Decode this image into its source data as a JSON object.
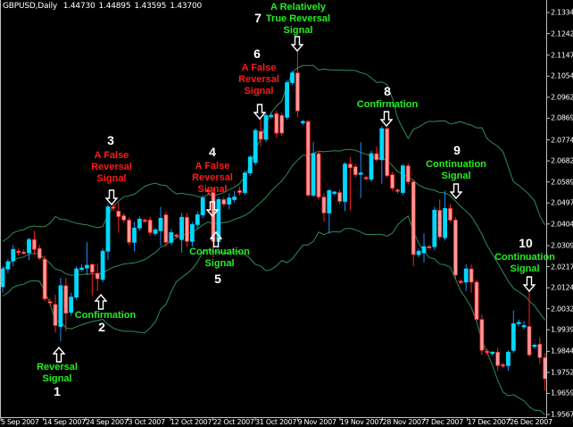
{
  "header": {
    "symbol": "GBPUSD,Daily",
    "open": "1.44730",
    "high": "1.44895",
    "low": "1.43595",
    "close": "1.43700"
  },
  "colors": {
    "background": "#000000",
    "bull_fill": "#00d8ff",
    "bull_wick": "#1e90ff",
    "bear_fill": "#ff9c9c",
    "bear_wick": "#ff2020",
    "bands": "#2e8b57",
    "axis": "#c0c0c0",
    "red_text": "#ff1a1a",
    "green_text": "#22ee22"
  },
  "annotations": [
    {
      "number": "1",
      "text": [
        "Reversal",
        "Signal"
      ],
      "color": "green",
      "arrow": "up-arrow-icon"
    },
    {
      "number": "2",
      "text": [
        "Confirmation"
      ],
      "color": "green",
      "arrow": "up-arrow-icon"
    },
    {
      "number": "3",
      "text": [
        "A False",
        "Reversal",
        "Signal"
      ],
      "color": "red",
      "arrow": "down-arrow-icon"
    },
    {
      "number": "4",
      "text": [
        "A False",
        "Reversal",
        "Signal"
      ],
      "color": "red",
      "arrow": "down-arrow-icon"
    },
    {
      "number": "5",
      "text": [
        "Continuation",
        "Signal"
      ],
      "color": "green",
      "arrow": "up-arrow-icon"
    },
    {
      "number": "6",
      "text": [
        "A False",
        "Reversal",
        "Signal"
      ],
      "color": "red",
      "arrow": "down-arrow-icon"
    },
    {
      "number": "7",
      "text": [
        "A Relatively",
        "True Reversal",
        "Signal"
      ],
      "color": "green",
      "arrow": "down-arrow-icon"
    },
    {
      "number": "8",
      "text": [
        "Confirmation"
      ],
      "color": "green",
      "arrow": "down-arrow-icon"
    },
    {
      "number": "9",
      "text": [
        "Continuation",
        "Signal"
      ],
      "color": "green",
      "arrow": "down-arrow-icon"
    },
    {
      "number": "10",
      "text": [
        "Continuation",
        "Signal"
      ],
      "color": "green",
      "arrow": "down-arrow-icon"
    }
  ],
  "chart_data": {
    "type": "candlestick",
    "title": "GBPUSD,Daily",
    "indicator": "Bollinger Bands",
    "ylim": [
      1.9567,
      2.13345
    ],
    "y_ticks": [
      "2.13345",
      "2.12420",
      "2.11470",
      "2.10545",
      "2.09620",
      "2.08695",
      "2.07745",
      "2.06820",
      "2.05895",
      "2.04970",
      "2.04045",
      "2.03095",
      "2.02170",
      "2.01245",
      "2.00320",
      "1.99395",
      "1.98445",
      "1.97520",
      "1.96595",
      "1.95670"
    ],
    "x_ticks": [
      "5 Sep 2007",
      "14 Sep 2007",
      "24 Sep 2007",
      "3 Oct 2007",
      "12 Oct 2007",
      "22 Oct 2007",
      "31 Oct 2007",
      "9 Nov 2007",
      "19 Nov 2007",
      "28 Nov 2007",
      "7 Dec 2007",
      "17 Dec 2007",
      "26 Dec 2007"
    ],
    "ohlc": [
      [
        2.0129,
        2.0219,
        2.0102,
        2.0207
      ],
      [
        2.0207,
        2.025,
        2.0188,
        2.0239
      ],
      [
        2.0242,
        2.0313,
        2.0219,
        2.0293
      ],
      [
        2.0285,
        2.0297,
        2.0266,
        2.0281
      ],
      [
        2.0281,
        2.0293,
        2.027,
        2.0278
      ],
      [
        2.0278,
        2.0344,
        2.0246,
        2.0336
      ],
      [
        2.0336,
        2.0375,
        2.027,
        2.0293
      ],
      [
        2.0297,
        2.0313,
        2.0246,
        2.0254
      ],
      [
        2.025,
        2.0266,
        2.0063,
        2.0075
      ],
      [
        2.0063,
        2.0079,
        2.0044,
        2.0059
      ],
      [
        2.0051,
        2.0094,
        1.9927,
        1.9958
      ],
      [
        1.9954,
        2.0168,
        1.9888,
        2.0133
      ],
      [
        2.0133,
        2.0168,
        1.9934,
        2.0012
      ],
      [
        2.0016,
        2.0102,
        2.0001,
        2.0083
      ],
      [
        2.0083,
        2.0219,
        2.0071,
        2.0207
      ],
      [
        2.0207,
        2.0227,
        2.0196,
        2.0211
      ],
      [
        2.0211,
        2.0324,
        2.018,
        2.0223
      ],
      [
        2.0227,
        2.0231,
        2.009,
        2.0192
      ],
      [
        2.0188,
        2.0231,
        2.011,
        2.0164
      ],
      [
        2.0161,
        2.0297,
        2.0149,
        2.0285
      ],
      [
        2.0285,
        2.0492,
        2.0246,
        2.048
      ],
      [
        2.048,
        2.0492,
        2.0461,
        2.0476
      ],
      [
        2.0461,
        2.05,
        2.0367,
        2.0437
      ],
      [
        2.0441,
        2.0453,
        2.041,
        2.0422
      ],
      [
        2.0422,
        2.0434,
        2.0313,
        2.0324
      ],
      [
        2.0324,
        2.0414,
        2.0285,
        2.0387
      ],
      [
        2.0387,
        2.0437,
        2.0375,
        2.0426
      ],
      [
        2.0422,
        2.043,
        2.041,
        2.0418
      ],
      [
        2.0422,
        2.0437,
        2.0352,
        2.0367
      ],
      [
        2.0363,
        2.0387,
        2.0352,
        2.0379
      ],
      [
        2.0375,
        2.048,
        2.0309,
        2.043
      ],
      [
        2.0445,
        2.0461,
        2.0305,
        2.0324
      ],
      [
        2.0324,
        2.0383,
        2.0313,
        2.0367
      ],
      [
        2.0356,
        2.0363,
        2.0344,
        2.0352
      ],
      [
        2.0336,
        2.0453,
        2.0278,
        2.0434
      ],
      [
        2.0434,
        2.0453,
        2.0305,
        2.0328
      ],
      [
        2.0328,
        2.0414,
        2.0305,
        2.0402
      ],
      [
        2.0402,
        2.0461,
        2.0383,
        2.0445
      ],
      [
        2.0445,
        2.0531,
        2.043,
        2.0519
      ],
      [
        2.0554,
        2.0566,
        2.0535,
        2.0547
      ],
      [
        2.0543,
        2.0562,
        2.0258,
        2.0328
      ],
      [
        2.0328,
        2.0523,
        2.0297,
        2.0512
      ],
      [
        2.0512,
        2.0523,
        2.048,
        2.0492
      ],
      [
        2.0492,
        2.0539,
        2.0469,
        2.0519
      ],
      [
        2.0512,
        2.0551,
        2.05,
        2.0523
      ],
      [
        2.0551,
        2.0566,
        2.0531,
        2.0543
      ],
      [
        2.0543,
        2.064,
        2.0531,
        2.0629
      ],
      [
        2.0629,
        2.0707,
        2.0617,
        2.0699
      ],
      [
        2.0675,
        2.0824,
        2.0664,
        2.0816
      ],
      [
        2.0812,
        2.0874,
        2.0746,
        2.0777
      ],
      [
        2.0777,
        2.089,
        2.0765,
        2.0882
      ],
      [
        2.0878,
        2.0894,
        2.0866,
        2.0882
      ],
      [
        2.089,
        2.0902,
        2.0785,
        2.0804
      ],
      [
        2.0882,
        2.0894,
        2.0792,
        2.0804
      ],
      [
        2.0874,
        2.1038,
        2.0863,
        2.1026
      ],
      [
        2.1026,
        2.1077,
        2.1015,
        2.1069
      ],
      [
        2.1069,
        2.1163,
        2.0874,
        2.0902
      ],
      [
        2.0851,
        2.0863,
        2.0839,
        2.0855
      ],
      [
        2.0855,
        2.0863,
        2.0523,
        2.0531
      ],
      [
        2.0531,
        2.0765,
        2.0523,
        2.0714
      ],
      [
        2.0714,
        2.0726,
        2.0512,
        2.0523
      ],
      [
        2.0523,
        2.0539,
        2.0414,
        2.0453
      ],
      [
        2.0453,
        2.0558,
        2.0363,
        2.0551
      ],
      [
        2.0543,
        2.0551,
        2.0531,
        2.0545
      ],
      [
        2.0543,
        2.0554,
        2.0492,
        2.0504
      ],
      [
        2.0504,
        2.0675,
        2.0461,
        2.0668
      ],
      [
        2.0668,
        2.0699,
        2.0465,
        2.0652
      ],
      [
        2.0656,
        2.0668,
        2.0609,
        2.0621
      ],
      [
        2.0625,
        2.0765,
        2.0519,
        2.0629
      ],
      [
        2.0609,
        2.0617,
        2.0597,
        2.0605
      ],
      [
        2.0601,
        2.0726,
        2.059,
        2.0714
      ],
      [
        2.0714,
        2.0746,
        2.0679,
        2.0687
      ],
      [
        2.0687,
        2.0835,
        2.0582,
        2.0824
      ],
      [
        2.0824,
        2.0831,
        2.0609,
        2.0617
      ],
      [
        2.0621,
        2.0632,
        2.0551,
        2.0562
      ],
      [
        2.0554,
        2.0562,
        2.0539,
        2.0551
      ],
      [
        2.0543,
        2.0668,
        2.0531,
        2.066
      ],
      [
        2.066,
        2.0671,
        2.0578,
        2.059
      ],
      [
        2.059,
        2.0601,
        2.0219,
        2.027
      ],
      [
        2.027,
        2.0297,
        2.0258,
        2.0285
      ],
      [
        2.0278,
        2.0363,
        2.0235,
        2.0305
      ],
      [
        2.0305,
        2.0313,
        2.0297,
        2.0303
      ],
      [
        2.0305,
        2.048,
        2.0289,
        2.0465
      ],
      [
        2.0465,
        2.0512,
        2.0336,
        2.0348
      ],
      [
        2.0344,
        2.0551,
        2.0332,
        2.0473
      ],
      [
        2.0473,
        2.0492,
        2.0414,
        2.0422
      ],
      [
        2.0422,
        2.0434,
        2.0161,
        2.018
      ],
      [
        2.0153,
        2.0161,
        2.0141,
        2.0149
      ],
      [
        2.0149,
        2.0227,
        2.011,
        2.0207
      ],
      [
        2.0207,
        2.0227,
        2.0102,
        2.0149
      ],
      [
        2.0149,
        2.0161,
        1.9977,
        1.9985
      ],
      [
        1.9985,
        2.0005,
        1.9829,
        1.9849
      ],
      [
        1.9845,
        1.9856,
        1.9829,
        1.9841
      ],
      [
        1.9837,
        1.9845,
        1.9825,
        1.9841
      ],
      [
        1.9841,
        1.986,
        1.9759,
        1.9782
      ],
      [
        1.9786,
        1.9794,
        1.9771,
        1.9782
      ],
      [
        1.9782,
        1.9849,
        1.9759,
        1.9841
      ],
      [
        1.9849,
        2.0024,
        1.9837,
        1.9966
      ],
      [
        1.9969,
        1.9985,
        1.9954,
        1.9972
      ],
      [
        1.9954,
        1.9977,
        1.9942,
        1.9958
      ],
      [
        1.9954,
        2.011,
        1.9821,
        1.9829
      ],
      [
        1.9868,
        1.988,
        1.9856,
        1.9872
      ],
      [
        1.9876,
        1.9907,
        1.979,
        1.9817
      ],
      [
        1.9817,
        1.9837,
        1.9673,
        1.9724
      ]
    ]
  }
}
